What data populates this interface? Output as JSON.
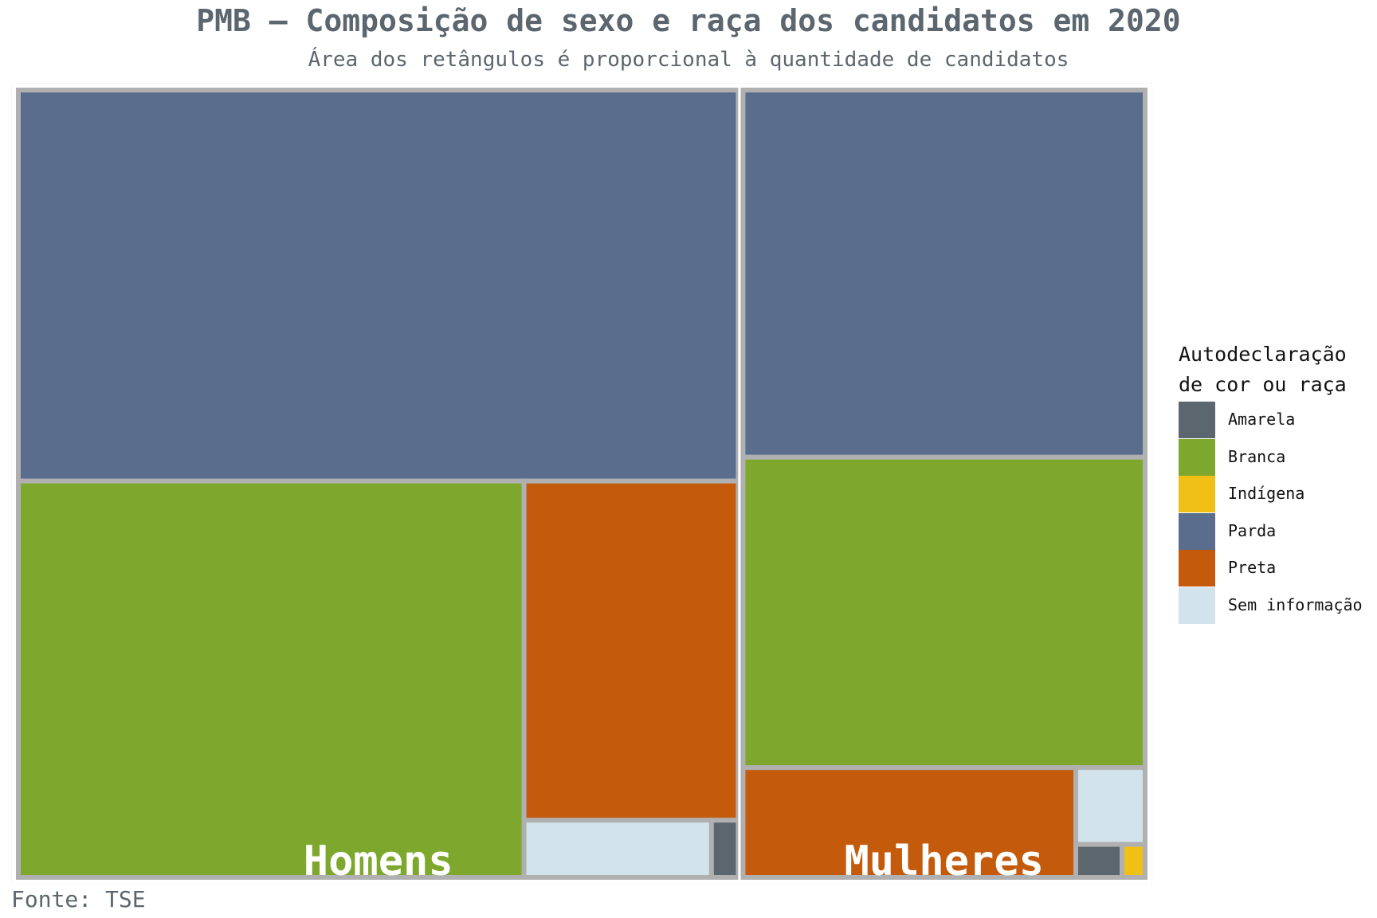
{
  "chart_data": {
    "type": "treemap",
    "title": "PMB – Composição de sexo e raça dos candidatos em 2020",
    "subtitle": "Área dos retângulos é proporcional à quantidade de candidatos",
    "source": "Fonte: TSE",
    "legend": {
      "title": "Autodeclaração\nde cor ou raça",
      "placement": "right",
      "items": [
        {
          "label": "Amarela",
          "color": "#5b666e"
        },
        {
          "label": "Branca",
          "color": "#7ea72e"
        },
        {
          "label": "Indígena",
          "color": "#f0c016"
        },
        {
          "label": "Parda",
          "color": "#5a6d8c"
        },
        {
          "label": "Preta",
          "color": "#c45a0b"
        },
        {
          "label": "Sem informação",
          "color": "#d3e3eb"
        }
      ]
    },
    "groups": [
      {
        "name": "Homens",
        "children": [
          {
            "category": "Parda",
            "value": 368
          },
          {
            "category": "Branca",
            "value": 262
          },
          {
            "category": "Preta",
            "value": 95
          },
          {
            "category": "Sem informação",
            "value": 14
          },
          {
            "category": "Amarela",
            "value": 2
          }
        ]
      },
      {
        "name": "Mulheres",
        "children": [
          {
            "category": "Parda",
            "value": 194
          },
          {
            "category": "Branca",
            "value": 164
          },
          {
            "category": "Preta",
            "value": 48
          },
          {
            "category": "Sem informação",
            "value": 7
          },
          {
            "category": "Amarela",
            "value": 2
          },
          {
            "category": "Indígena",
            "value": 1
          }
        ]
      }
    ]
  }
}
